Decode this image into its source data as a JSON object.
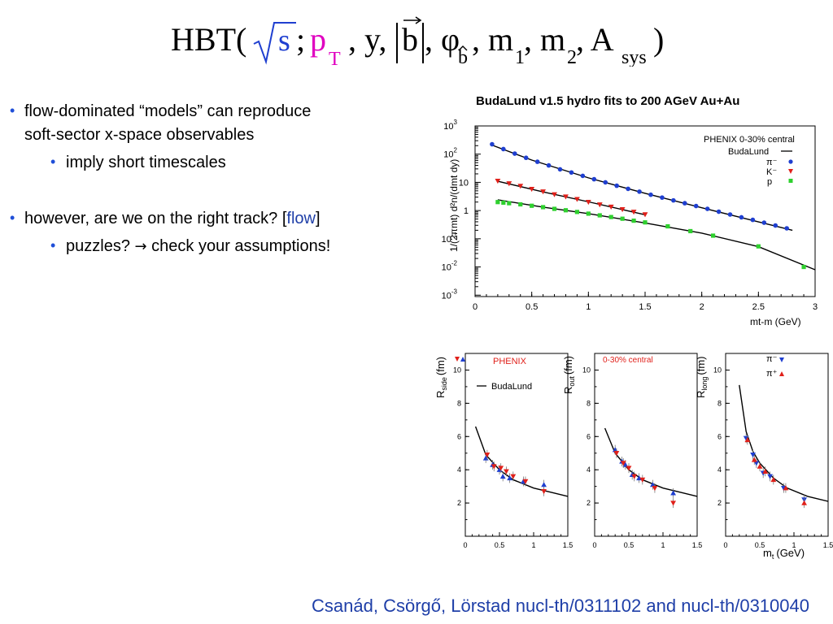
{
  "title_formula": {
    "prefix": "HBT(",
    "sqrt_s": "s",
    "semicolon": ";",
    "p": "p",
    "p_sub": "T",
    "y_part": ", y,",
    "b": "b",
    "phi_part": ", φ",
    "phi_sub": "b",
    "m_part": ", m",
    "m1_sub": "1",
    "m2_part": ", m",
    "m2_sub": "2",
    "a_part": ", A",
    "a_sub": "sys",
    "suffix": ")"
  },
  "bullets": {
    "b1_line1": "flow-dominated “models” can reproduce",
    "b1_line2": "soft-sector x-space observables",
    "b1_sub": "imply short timescales",
    "b2_pre": "however, are we on the right track? [",
    "b2_link": "flow",
    "b2_post": "]",
    "b2_sub_pre": "puzzles?",
    "b2_sub_arrow": "→",
    "b2_sub_post": "check your assumptions!"
  },
  "citation": "Csanád, Csörgő, Lörstad nucl-th/0311102 and nucl-th/0310040",
  "colors": {
    "pion": "#1f3fd0",
    "kaon": "#e0201a",
    "proton": "#2ed02e",
    "fit": "#000000",
    "accent": "#1f3fa8",
    "magenta": "#e000c0"
  },
  "chart_data": [
    {
      "type": "scatter",
      "title": "BudaLund v1.5 hydro fits to 200 AGeV Au+Au",
      "xlabel": "mt-m (GeV)",
      "ylabel": "1/(2πmt) d²n/(dmt dy)",
      "yscale": "log",
      "xlim": [
        0,
        3
      ],
      "ylim_log10": [
        -3.05,
        3
      ],
      "x_ticks": [
        "0",
        "0.5",
        "1",
        "1.5",
        "2",
        "2.5",
        "3"
      ],
      "y_ticks": [
        {
          "base": "10",
          "exp": "3",
          "v": 3
        },
        {
          "base": "10",
          "exp": "2",
          "v": 2
        },
        {
          "base": "10",
          "exp": "",
          "v": 1
        },
        {
          "base": "1",
          "exp": "",
          "v": 0
        },
        {
          "base": "10",
          "exp": "-1",
          "v": -1
        },
        {
          "base": "10",
          "exp": "-2",
          "v": -2
        },
        {
          "base": "10",
          "exp": "-3",
          "v": -3
        }
      ],
      "legend": {
        "header": "PHENIX 0-30% central",
        "fit_label": "BudaLund",
        "placement": "top-right"
      },
      "series": [
        {
          "name": "π⁻",
          "marker": "circle",
          "x": [
            0.15,
            0.25,
            0.35,
            0.45,
            0.55,
            0.65,
            0.75,
            0.85,
            0.95,
            1.05,
            1.15,
            1.25,
            1.35,
            1.45,
            1.55,
            1.65,
            1.75,
            1.85,
            1.95,
            2.05,
            2.15,
            2.25,
            2.35,
            2.45,
            2.55,
            2.65,
            2.75
          ],
          "y_log10": [
            2.35,
            2.18,
            2.02,
            1.87,
            1.73,
            1.6,
            1.46,
            1.35,
            1.23,
            1.11,
            1.0,
            0.88,
            0.77,
            0.67,
            0.56,
            0.46,
            0.36,
            0.26,
            0.16,
            0.06,
            -0.04,
            -0.14,
            -0.24,
            -0.33,
            -0.43,
            -0.53,
            -0.63
          ]
        },
        {
          "name": "K⁻",
          "marker": "triangle-down",
          "x": [
            0.2,
            0.3,
            0.4,
            0.5,
            0.6,
            0.7,
            0.8,
            0.9,
            1.0,
            1.1,
            1.2,
            1.3,
            1.4,
            1.5
          ],
          "y_log10": [
            1.05,
            0.96,
            0.87,
            0.76,
            0.67,
            0.57,
            0.49,
            0.4,
            0.3,
            0.21,
            0.13,
            0.04,
            -0.05,
            -0.14
          ]
        },
        {
          "name": "p",
          "marker": "square",
          "x": [
            0.2,
            0.25,
            0.3,
            0.4,
            0.5,
            0.6,
            0.7,
            0.8,
            0.9,
            1.0,
            1.1,
            1.2,
            1.3,
            1.4,
            1.5,
            1.7,
            1.9,
            2.1,
            2.5,
            2.9
          ],
          "y_log10": [
            0.3,
            0.28,
            0.26,
            0.22,
            0.17,
            0.12,
            0.06,
            0.01,
            -0.05,
            -0.11,
            -0.17,
            -0.23,
            -0.29,
            -0.36,
            -0.42,
            -0.56,
            -0.73,
            -0.89,
            -1.27,
            -2.0
          ]
        }
      ],
      "fits": [
        {
          "name": "BudaLund π⁻",
          "x": [
            0.15,
            0.5,
            1.0,
            1.5,
            2.0,
            2.5,
            2.8
          ],
          "y_log10": [
            2.32,
            1.79,
            1.16,
            0.61,
            0.1,
            -0.4,
            -0.7
          ]
        },
        {
          "name": "BudaLund K⁻",
          "x": [
            0.2,
            0.6,
            1.0,
            1.5
          ],
          "y_log10": [
            1.04,
            0.66,
            0.31,
            -0.15
          ]
        },
        {
          "name": "BudaLund p",
          "x": [
            0.2,
            0.6,
            1.0,
            1.5,
            2.0,
            2.5,
            3.0
          ],
          "y_log10": [
            0.38,
            0.12,
            -0.11,
            -0.44,
            -0.8,
            -1.28,
            -2.1
          ]
        }
      ]
    },
    {
      "type": "scatter",
      "ylabel_main": "R",
      "ylabel_sub": "side",
      "ylabel_unit": "(fm)",
      "xlim": [
        0,
        1.5
      ],
      "ylim": [
        0,
        11
      ],
      "x_ticks": [
        "0",
        "0.5",
        "1",
        "1.5"
      ],
      "y_ticks": [
        "2",
        "4",
        "6",
        "8",
        "10"
      ],
      "legend": {
        "header": "PHENIX",
        "fit_label": "BudaLund",
        "placement": "top-left"
      },
      "series": [
        {
          "name": "π⁻",
          "marker": "triangle-up",
          "x": [
            0.3,
            0.4,
            0.5,
            0.55,
            0.65,
            0.85,
            1.15
          ],
          "y": [
            4.7,
            4.3,
            4.0,
            3.6,
            3.5,
            3.3,
            3.1
          ]
        },
        {
          "name": "π⁺",
          "marker": "triangle-down",
          "x": [
            0.32,
            0.42,
            0.52,
            0.6,
            0.7,
            0.88,
            1.15
          ],
          "y": [
            4.9,
            4.2,
            4.1,
            3.9,
            3.6,
            3.3,
            2.7
          ]
        }
      ],
      "fit": {
        "x": [
          0.15,
          0.3,
          0.5,
          0.7,
          1.0,
          1.3,
          1.5
        ],
        "y": [
          6.6,
          4.9,
          4.0,
          3.4,
          2.9,
          2.6,
          2.4
        ]
      }
    },
    {
      "type": "scatter",
      "ylabel_main": "R",
      "ylabel_sub": "out",
      "ylabel_unit": "(fm)",
      "xlim": [
        0,
        1.5
      ],
      "ylim": [
        0,
        11
      ],
      "x_ticks": [
        "0",
        "0.5",
        "1",
        "1.5"
      ],
      "y_ticks": [
        "2",
        "4",
        "6",
        "8",
        "10"
      ],
      "legend": {
        "header": "0-30% central",
        "placement": "top-left"
      },
      "series": [
        {
          "name": "π⁻",
          "marker": "triangle-up",
          "x": [
            0.3,
            0.4,
            0.45,
            0.55,
            0.65,
            0.85,
            1.15
          ],
          "y": [
            5.2,
            4.5,
            4.3,
            3.7,
            3.5,
            3.1,
            2.6
          ]
        },
        {
          "name": "π⁺",
          "marker": "triangle-down",
          "x": [
            0.32,
            0.42,
            0.5,
            0.58,
            0.7,
            0.88,
            1.15
          ],
          "y": [
            5.0,
            4.4,
            4.1,
            3.6,
            3.4,
            2.9,
            2.0
          ]
        }
      ],
      "fit": {
        "x": [
          0.15,
          0.3,
          0.5,
          0.7,
          1.0,
          1.3,
          1.5
        ],
        "y": [
          6.5,
          5.0,
          4.0,
          3.4,
          2.9,
          2.6,
          2.4
        ]
      }
    },
    {
      "type": "scatter",
      "ylabel_main": "R",
      "ylabel_sub": "long",
      "ylabel_unit": "(fm)",
      "xlabel_main": "m",
      "xlabel_sub": "t",
      "xlabel_unit": "(GeV)",
      "xlim": [
        0,
        1.5
      ],
      "ylim": [
        0,
        11
      ],
      "x_ticks": [
        "0",
        "0.5",
        "1",
        "1.5"
      ],
      "y_ticks": [
        "2",
        "4",
        "6",
        "8",
        "10"
      ],
      "legend": {
        "entries": [
          "π⁻",
          "π⁺"
        ],
        "placement": "top-right"
      },
      "series": [
        {
          "name": "π⁻",
          "marker": "triangle-down",
          "x": [
            0.3,
            0.4,
            0.45,
            0.55,
            0.65,
            0.85,
            1.15
          ],
          "y": [
            5.9,
            4.9,
            4.4,
            3.8,
            3.6,
            2.9,
            2.2
          ]
        },
        {
          "name": "π⁺",
          "marker": "triangle-up",
          "x": [
            0.32,
            0.42,
            0.5,
            0.58,
            0.7,
            0.88,
            1.15
          ],
          "y": [
            5.8,
            4.6,
            4.2,
            3.9,
            3.4,
            2.9,
            2.0
          ]
        }
      ],
      "fit": {
        "x": [
          0.2,
          0.3,
          0.4,
          0.5,
          0.7,
          0.9,
          1.2,
          1.5
        ],
        "y": [
          9.1,
          6.3,
          5.1,
          4.4,
          3.5,
          2.9,
          2.4,
          2.1
        ]
      }
    }
  ]
}
